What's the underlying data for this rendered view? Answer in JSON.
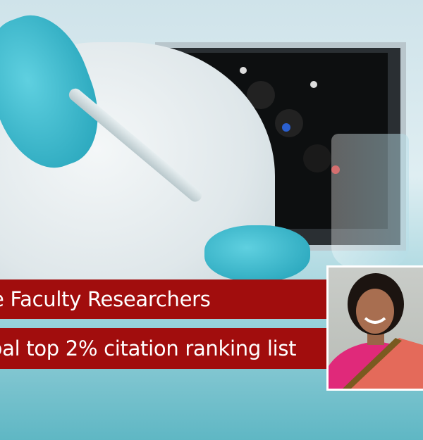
{
  "banners": {
    "line1": "e Faculty Researchers",
    "line2": "bal top 2% citation ranking list"
  },
  "colors": {
    "banner": "#a10d0d",
    "banner_text": "#ffffff"
  }
}
